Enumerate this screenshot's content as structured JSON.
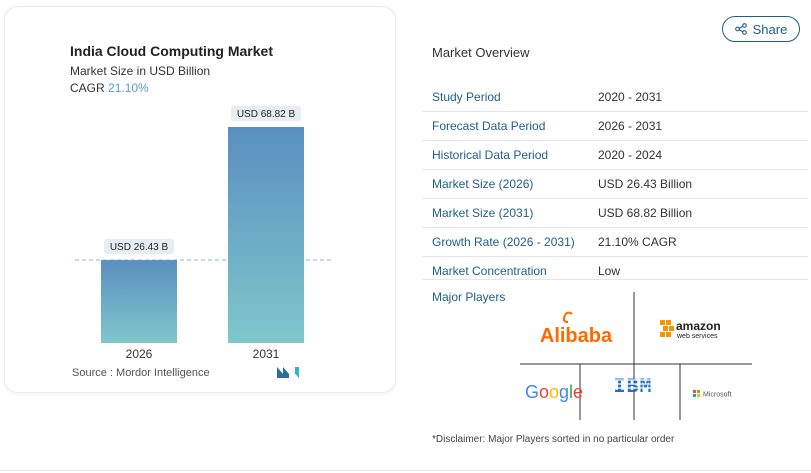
{
  "chart_data": {
    "type": "bar",
    "title": "India Cloud Computing Market",
    "subtitle": "Market Size in USD Billion",
    "cagr_label": "CAGR",
    "cagr_value": "21.10%",
    "categories": [
      "2026",
      "2031"
    ],
    "values": [
      26.43,
      68.82
    ],
    "data_labels": [
      "USD 26.43 B",
      "USD 68.82 B"
    ],
    "ylim": [
      0,
      75
    ],
    "bar_gradient": [
      "#5a8fbf",
      "#7fc7cc"
    ],
    "reference_line_value": 26.43
  },
  "source": {
    "label": "Source :",
    "name": "Mordor Intelligence"
  },
  "share_button": {
    "label": "Share",
    "icon": "share-icon"
  },
  "overview": {
    "title": "Market Overview",
    "rows": [
      {
        "key": "Study Period",
        "value": "2020 - 2031"
      },
      {
        "key": "Forecast Data Period",
        "value": "2026 - 2031"
      },
      {
        "key": "Historical Data Period",
        "value": "2020 - 2024"
      },
      {
        "key": "Market Size (2026)",
        "value": "USD 26.43 Billion"
      },
      {
        "key": "Market Size (2031)",
        "value": "USD 68.82 Billion"
      },
      {
        "key": "Growth Rate (2026 - 2031)",
        "value": "21.10% CAGR"
      },
      {
        "key": "Market Concentration",
        "value": "Low"
      }
    ]
  },
  "major_players": {
    "label": "Major Players",
    "logos": [
      "Alibaba",
      "amazon web services",
      "Google",
      "IBM",
      "Microsoft"
    ]
  },
  "disclaimer": "*Disclaimer: Major Players sorted in no particular order",
  "colors": {
    "accent": "#1f5f8b",
    "alibaba": "#ff6a00",
    "amazon_orange": "#f79400",
    "ibm": "#1f70c1"
  }
}
